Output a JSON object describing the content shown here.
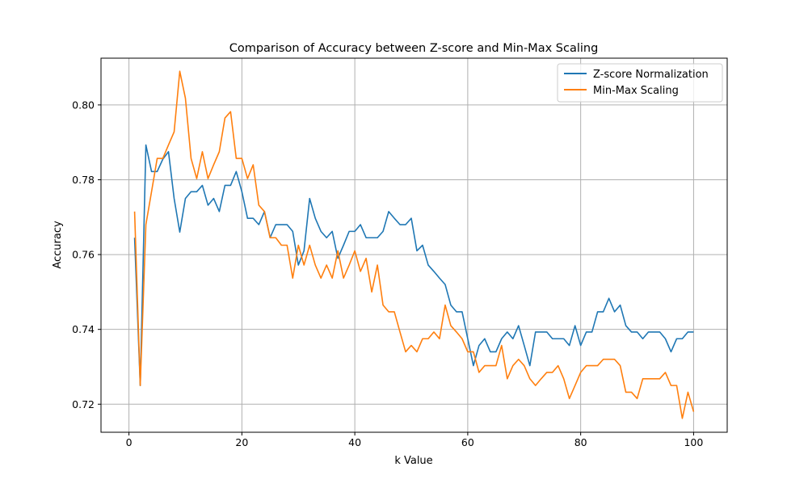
{
  "chart_data": {
    "type": "line",
    "title": "Comparison of Accuracy between Z-score and Min-Max Scaling",
    "xlabel": "k Value",
    "ylabel": "Accuracy",
    "xlim": [
      -4.95,
      105.95
    ],
    "ylim": [
      0.7125,
      0.8125
    ],
    "xticks": [
      0,
      20,
      40,
      60,
      80,
      100
    ],
    "yticks": [
      0.72,
      0.74,
      0.76,
      0.78,
      0.8
    ],
    "grid": true,
    "legend_position": "top-right",
    "x": [
      1,
      2,
      3,
      4,
      5,
      6,
      7,
      8,
      9,
      10,
      11,
      12,
      13,
      14,
      15,
      16,
      17,
      18,
      19,
      20,
      21,
      22,
      23,
      24,
      25,
      26,
      27,
      28,
      29,
      30,
      31,
      32,
      33,
      34,
      35,
      36,
      37,
      38,
      39,
      40,
      41,
      42,
      43,
      44,
      45,
      46,
      47,
      48,
      49,
      50,
      51,
      52,
      53,
      54,
      55,
      56,
      57,
      58,
      59,
      60,
      61,
      62,
      63,
      64,
      65,
      66,
      67,
      68,
      69,
      70,
      71,
      72,
      73,
      74,
      75,
      76,
      77,
      78,
      79,
      80,
      81,
      82,
      83,
      84,
      85,
      86,
      87,
      88,
      89,
      90,
      91,
      92,
      93,
      94,
      95,
      96,
      97,
      98,
      99,
      100
    ],
    "series": [
      {
        "name": "Z-score Normalization",
        "color": "#1f77b4",
        "values": [
          0.7645,
          0.725,
          0.7893,
          0.7822,
          0.7822,
          0.7855,
          0.7875,
          0.775,
          0.766,
          0.775,
          0.7768,
          0.7768,
          0.7785,
          0.7732,
          0.775,
          0.7715,
          0.7785,
          0.7785,
          0.7822,
          0.7768,
          0.7697,
          0.7697,
          0.768,
          0.7715,
          0.7645,
          0.768,
          0.768,
          0.768,
          0.7662,
          0.7572,
          0.761,
          0.775,
          0.7697,
          0.7662,
          0.7645,
          0.7662,
          0.759,
          0.7625,
          0.7662,
          0.7662,
          0.768,
          0.7645,
          0.7645,
          0.7645,
          0.7662,
          0.7715,
          0.7697,
          0.768,
          0.768,
          0.7697,
          0.761,
          0.7625,
          0.7572,
          0.7555,
          0.7537,
          0.752,
          0.7465,
          0.7447,
          0.7447,
          0.7375,
          0.7303,
          0.7357,
          0.7375,
          0.734,
          0.734,
          0.7375,
          0.7393,
          0.7375,
          0.741,
          0.7357,
          0.7303,
          0.7393,
          0.7393,
          0.7393,
          0.7375,
          0.7375,
          0.7375,
          0.7357,
          0.741,
          0.7357,
          0.7393,
          0.7393,
          0.7447,
          0.7447,
          0.7483,
          0.7447,
          0.7465,
          0.741,
          0.7393,
          0.7393,
          0.7375,
          0.7393,
          0.7393,
          0.7393,
          0.7375,
          0.734,
          0.7375,
          0.7375,
          0.7393,
          0.7393
        ]
      },
      {
        "name": "Min-Max Scaling",
        "color": "#ff7f0e",
        "values": [
          0.7715,
          0.725,
          0.768,
          0.7768,
          0.7857,
          0.7857,
          0.7893,
          0.7928,
          0.809,
          0.8018,
          0.7857,
          0.7803,
          0.7875,
          0.7803,
          0.784,
          0.7875,
          0.7965,
          0.7982,
          0.7857,
          0.7857,
          0.7803,
          0.784,
          0.7732,
          0.7715,
          0.7645,
          0.7645,
          0.7625,
          0.7625,
          0.7537,
          0.7625,
          0.7572,
          0.7625,
          0.7572,
          0.7537,
          0.7572,
          0.7537,
          0.761,
          0.7537,
          0.7572,
          0.761,
          0.7555,
          0.759,
          0.75,
          0.7572,
          0.7465,
          0.7447,
          0.7447,
          0.7393,
          0.734,
          0.7357,
          0.734,
          0.7375,
          0.7375,
          0.7393,
          0.7375,
          0.7465,
          0.741,
          0.7393,
          0.7375,
          0.734,
          0.734,
          0.7285,
          0.7303,
          0.7303,
          0.7303,
          0.7357,
          0.7268,
          0.7303,
          0.732,
          0.7303,
          0.7268,
          0.725,
          0.7268,
          0.7285,
          0.7285,
          0.7303,
          0.7268,
          0.7215,
          0.725,
          0.7285,
          0.7303,
          0.7303,
          0.7303,
          0.732,
          0.732,
          0.732,
          0.7303,
          0.7232,
          0.7232,
          0.7215,
          0.7268,
          0.7268,
          0.7268,
          0.7268,
          0.7285,
          0.725,
          0.725,
          0.7162,
          0.7232,
          0.718
        ]
      }
    ]
  }
}
